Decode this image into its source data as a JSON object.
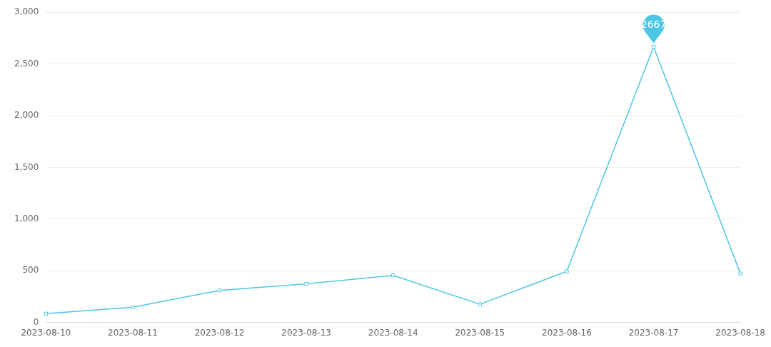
{
  "chart_data": {
    "type": "line",
    "categories": [
      "2023-08-10",
      "2023-08-11",
      "2023-08-12",
      "2023-08-13",
      "2023-08-14",
      "2023-08-15",
      "2023-08-16",
      "2023-08-17",
      "2023-08-18"
    ],
    "series": [
      {
        "color": "#4cc6e4",
        "values": [
          85,
          148,
          310,
          374,
          455,
          176,
          494,
          2667,
          473
        ]
      }
    ],
    "ylim": [
      0,
      3000
    ],
    "yticks": [
      {
        "value": 0,
        "label": "0"
      },
      {
        "value": 500,
        "label": "500"
      },
      {
        "value": 1000,
        "label": "1,000"
      },
      {
        "value": 1500,
        "label": "1,500"
      },
      {
        "value": 2000,
        "label": "2,000"
      },
      {
        "value": 2500,
        "label": "2,500"
      },
      {
        "value": 3000,
        "label": "3,000"
      }
    ],
    "grid": "y",
    "legend": false,
    "marker": "square",
    "line_style": "solid",
    "annotations": [
      {
        "text": "2667",
        "x": "2023-08-17",
        "y": 2667
      }
    ]
  }
}
